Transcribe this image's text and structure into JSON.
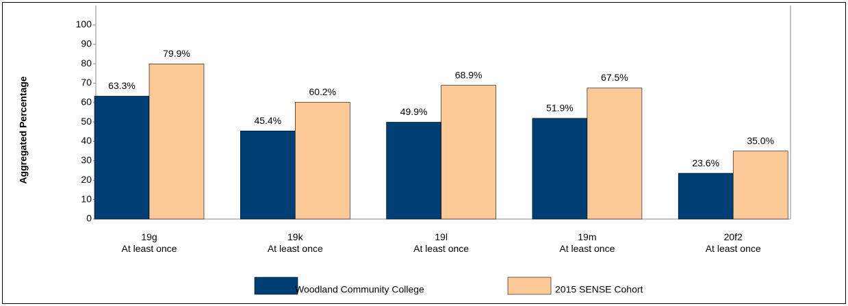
{
  "chart_data": {
    "type": "bar",
    "y_label": "Aggregated Percentage",
    "categories": [
      "19g\nAt least once",
      "19k\nAt least once",
      "19l\nAt least once",
      "19m\nAt least once",
      "20f2\nAt least once"
    ],
    "series": [
      {
        "name": "Woodland Community College",
        "color": "#003f73",
        "values": [
          63.3,
          45.4,
          49.9,
          51.9,
          23.6
        ],
        "value_labels": [
          "63.3%",
          "45.4%",
          "49.9%",
          "51.9%",
          "23.6%"
        ]
      },
      {
        "name": "2015 SENSE Cohort",
        "color": "#fdc997",
        "values": [
          79.9,
          60.2,
          68.9,
          67.5,
          35.0
        ],
        "value_labels": [
          "79.9%",
          "60.2%",
          "68.9%",
          "67.5%",
          "35.0%"
        ]
      }
    ],
    "ylim": [
      0,
      110
    ],
    "yticks": [
      0,
      10,
      20,
      30,
      40,
      50,
      60,
      70,
      80,
      90,
      100
    ],
    "grid": false
  }
}
